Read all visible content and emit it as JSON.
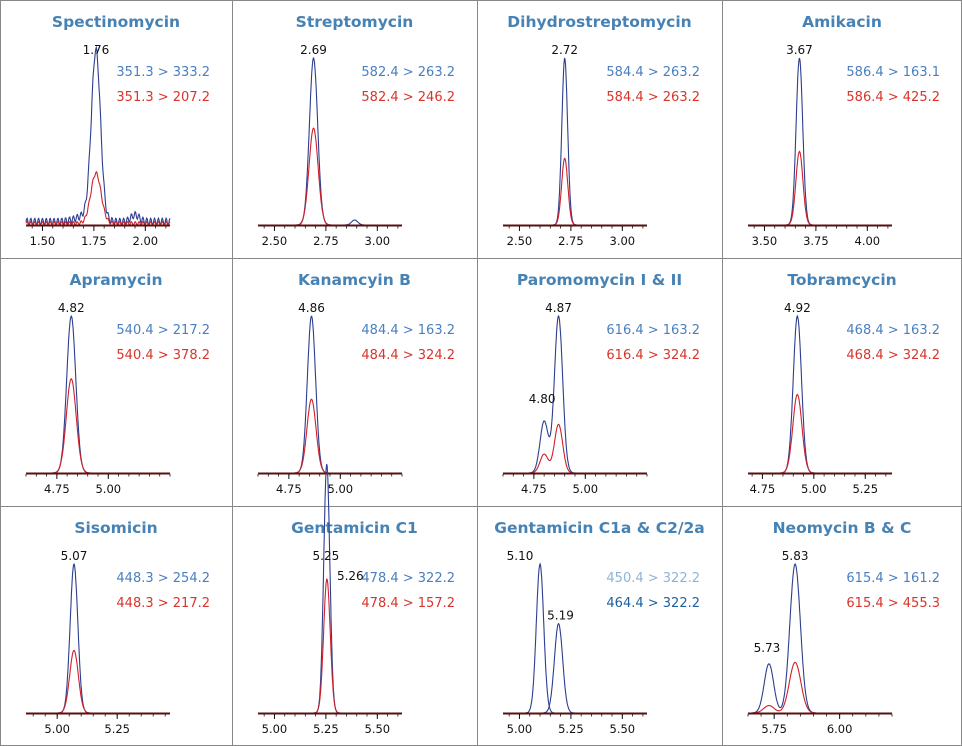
{
  "colors": {
    "title": "#4682b4",
    "blue_text": "#4a7fbf",
    "red_text": "#d9342b",
    "blue_trace": "#2c3e8f",
    "red_trace": "#d0202a",
    "light_blue_text": "#8fb3d9",
    "dark_blue_text": "#1f5f9e",
    "grid_border": "#888888"
  },
  "chart_data": [
    {
      "type": "line",
      "title": "Spectinomycin",
      "xlim": [
        1.42,
        2.12
      ],
      "xticks": [
        "1.50",
        "1.75",
        "2.00"
      ],
      "tick_values": [
        1.5,
        1.75,
        2.0
      ],
      "transitions": [
        {
          "text": "351.3 > 333.2",
          "color": "blue"
        },
        {
          "text": "351.3 > 207.2",
          "color": "red"
        }
      ],
      "series": [
        {
          "color": "blue",
          "baseline": 0.04,
          "peaks": [
            {
              "rt": 1.76,
              "height": 1.0,
              "width": 0.022,
              "label": "1.76"
            },
            {
              "rt": 1.72,
              "height": 0.04,
              "width": 0.05
            },
            {
              "rt": 1.95,
              "height": 0.04,
              "width": 0.02
            }
          ]
        },
        {
          "color": "red",
          "baseline": 0.02,
          "peaks": [
            {
              "rt": 1.76,
              "height": 0.3,
              "width": 0.025
            }
          ]
        }
      ]
    },
    {
      "type": "line",
      "title": "Streptomycin",
      "xlim": [
        2.42,
        3.12
      ],
      "xticks": [
        "2.50",
        "2.75",
        "3.00"
      ],
      "tick_values": [
        2.5,
        2.75,
        3.0
      ],
      "transitions": [
        {
          "text": "582.4 > 263.2",
          "color": "blue"
        },
        {
          "text": "582.4 > 246.2",
          "color": "red"
        }
      ],
      "series": [
        {
          "color": "blue",
          "baseline": 0.0,
          "peaks": [
            {
              "rt": 2.69,
              "height": 1.0,
              "width": 0.02,
              "label": "2.69"
            },
            {
              "rt": 2.89,
              "height": 0.03,
              "width": 0.015
            }
          ]
        },
        {
          "color": "red",
          "baseline": 0.0,
          "peaks": [
            {
              "rt": 2.69,
              "height": 0.58,
              "width": 0.022
            }
          ]
        }
      ]
    },
    {
      "type": "line",
      "title": "Dihydrostreptomycin",
      "xlim": [
        2.42,
        3.12
      ],
      "xticks": [
        "2.50",
        "2.75",
        "3.00"
      ],
      "tick_values": [
        2.5,
        2.75,
        3.0
      ],
      "transitions": [
        {
          "text": "584.4 > 263.2",
          "color": "blue"
        },
        {
          "text": "584.4 > 263.2",
          "color": "red"
        }
      ],
      "series": [
        {
          "color": "blue",
          "baseline": 0.0,
          "peaks": [
            {
              "rt": 2.72,
              "height": 1.0,
              "width": 0.014,
              "label": "2.72"
            }
          ]
        },
        {
          "color": "red",
          "baseline": 0.0,
          "peaks": [
            {
              "rt": 2.72,
              "height": 0.4,
              "width": 0.015
            }
          ]
        }
      ]
    },
    {
      "type": "line",
      "title": "Amikacin",
      "xlim": [
        3.42,
        4.12
      ],
      "xticks": [
        "3.50",
        "3.75",
        "4.00"
      ],
      "tick_values": [
        3.5,
        3.75,
        4.0
      ],
      "transitions": [
        {
          "text": "586.4 > 163.1",
          "color": "blue"
        },
        {
          "text": "586.4 > 425.2",
          "color": "red"
        }
      ],
      "series": [
        {
          "color": "blue",
          "baseline": 0.0,
          "peaks": [
            {
              "rt": 3.67,
              "height": 1.0,
              "width": 0.016,
              "label": "3.67"
            }
          ]
        },
        {
          "color": "red",
          "baseline": 0.0,
          "peaks": [
            {
              "rt": 3.67,
              "height": 0.44,
              "width": 0.017
            }
          ]
        }
      ]
    },
    {
      "type": "line",
      "title": "Apramycin",
      "xlim": [
        4.6,
        5.3
      ],
      "xticks": [
        "4.75",
        "5.00"
      ],
      "tick_values": [
        4.75,
        5.0
      ],
      "transitions": [
        {
          "text": "540.4 > 217.2",
          "color": "blue"
        },
        {
          "text": "540.4 > 378.2",
          "color": "red"
        }
      ],
      "series": [
        {
          "color": "blue",
          "baseline": 0.0,
          "peaks": [
            {
              "rt": 4.82,
              "height": 1.0,
              "width": 0.022,
              "label": "4.82"
            }
          ]
        },
        {
          "color": "red",
          "baseline": 0.0,
          "peaks": [
            {
              "rt": 4.82,
              "height": 0.6,
              "width": 0.024
            }
          ]
        }
      ]
    },
    {
      "type": "line",
      "title": "Kanamcyin B",
      "xlim": [
        4.6,
        5.3
      ],
      "xticks": [
        "4.75",
        "5.00"
      ],
      "tick_values": [
        4.75,
        5.0
      ],
      "transitions": [
        {
          "text": "484.4 > 163.2",
          "color": "blue"
        },
        {
          "text": "484.4 > 324.2",
          "color": "red"
        }
      ],
      "series": [
        {
          "color": "blue",
          "baseline": 0.0,
          "peaks": [
            {
              "rt": 4.86,
              "height": 1.0,
              "width": 0.02,
              "label": "4.86"
            }
          ]
        },
        {
          "color": "red",
          "baseline": 0.0,
          "peaks": [
            {
              "rt": 4.86,
              "height": 0.47,
              "width": 0.022
            }
          ]
        }
      ]
    },
    {
      "type": "line",
      "title": "Paromomycin I & II",
      "xlim": [
        4.6,
        5.3
      ],
      "xticks": [
        "4.75",
        "5.00"
      ],
      "tick_values": [
        4.75,
        5.0
      ],
      "transitions": [
        {
          "text": "616.4 > 163.2",
          "color": "blue"
        },
        {
          "text": "616.4 > 324.2",
          "color": "red"
        }
      ],
      "series": [
        {
          "color": "blue",
          "baseline": 0.0,
          "peaks": [
            {
              "rt": 4.8,
              "height": 0.33,
              "width": 0.02,
              "label": "4.80"
            },
            {
              "rt": 4.87,
              "height": 1.0,
              "width": 0.02,
              "label": "4.87"
            }
          ]
        },
        {
          "color": "red",
          "baseline": 0.0,
          "peaks": [
            {
              "rt": 4.8,
              "height": 0.12,
              "width": 0.02
            },
            {
              "rt": 4.87,
              "height": 0.31,
              "width": 0.02
            }
          ]
        }
      ]
    },
    {
      "type": "line",
      "title": "Tobramcycin",
      "xlim": [
        4.68,
        5.38
      ],
      "xticks": [
        "4.75",
        "5.00",
        "5.25"
      ],
      "tick_values": [
        4.75,
        5.0,
        5.25
      ],
      "transitions": [
        {
          "text": "468.4 > 163.2",
          "color": "blue"
        },
        {
          "text": "468.4 > 324.2",
          "color": "red"
        }
      ],
      "series": [
        {
          "color": "blue",
          "baseline": 0.0,
          "peaks": [
            {
              "rt": 4.92,
              "height": 1.0,
              "width": 0.02,
              "label": "4.92"
            }
          ]
        },
        {
          "color": "red",
          "baseline": 0.0,
          "peaks": [
            {
              "rt": 4.92,
              "height": 0.5,
              "width": 0.022
            }
          ]
        }
      ]
    },
    {
      "type": "line",
      "title": "Sisomicin",
      "xlim": [
        4.87,
        5.47
      ],
      "xticks": [
        "5.00",
        "5.25"
      ],
      "tick_values": [
        5.0,
        5.25
      ],
      "transitions": [
        {
          "text": "448.3 > 254.2",
          "color": "blue"
        },
        {
          "text": "448.3 > 217.2",
          "color": "red"
        }
      ],
      "series": [
        {
          "color": "blue",
          "baseline": 0.0,
          "peaks": [
            {
              "rt": 5.07,
              "height": 1.0,
              "width": 0.016,
              "label": "5.07"
            }
          ]
        },
        {
          "color": "red",
          "baseline": 0.0,
          "peaks": [
            {
              "rt": 5.07,
              "height": 0.42,
              "width": 0.018
            }
          ]
        }
      ]
    },
    {
      "type": "line",
      "title": "Gentamicin C1",
      "xlim": [
        4.92,
        5.62
      ],
      "xticks": [
        "5.00",
        "5.25",
        "5.50"
      ],
      "tick_values": [
        5.0,
        5.25,
        5.5
      ],
      "transitions": [
        {
          "text": "478.4 > 322.2",
          "color": "blue"
        },
        {
          "text": "478.4 > 157.2",
          "color": "red"
        }
      ],
      "series": [
        {
          "color": "blue",
          "baseline": 0.0,
          "peaks": [
            {
              "rt": 5.25,
              "height": 1.0,
              "width": 0.014,
              "label": "5.25"
            },
            {
              "rt": 5.26,
              "height": 0.78,
              "width": 0.014,
              "label": "5.26"
            }
          ]
        },
        {
          "color": "red",
          "baseline": 0.0,
          "peaks": [
            {
              "rt": 5.255,
              "height": 0.9,
              "width": 0.016
            }
          ]
        }
      ]
    },
    {
      "type": "line",
      "title": "Gentamicin C1a & C2/2a",
      "xlim": [
        4.92,
        5.62
      ],
      "xticks": [
        "5.00",
        "5.25",
        "5.50"
      ],
      "tick_values": [
        5.0,
        5.25,
        5.5
      ],
      "transitions": [
        {
          "text": "450.4 > 322.2",
          "color": "lightblue"
        },
        {
          "text": "464.4 > 322.2",
          "color": "darkblue"
        }
      ],
      "series": [
        {
          "color": "blue",
          "baseline": 0.0,
          "peaks": [
            {
              "rt": 5.1,
              "height": 1.0,
              "width": 0.018,
              "label": "5.10"
            }
          ]
        },
        {
          "color": "blue",
          "baseline": 0.0,
          "peaks": [
            {
              "rt": 5.19,
              "height": 0.6,
              "width": 0.02,
              "label": "5.19"
            }
          ]
        }
      ]
    },
    {
      "type": "line",
      "title": "Neomycin B & C",
      "xlim": [
        5.65,
        6.2
      ],
      "xticks": [
        "5.75",
        "6.00"
      ],
      "tick_values": [
        5.75,
        6.0
      ],
      "transitions": [
        {
          "text": "615.4 > 161.2",
          "color": "blue"
        },
        {
          "text": "615.4 > 455.3",
          "color": "red"
        }
      ],
      "series": [
        {
          "color": "blue",
          "baseline": 0.0,
          "peaks": [
            {
              "rt": 5.73,
              "height": 0.33,
              "width": 0.018,
              "label": "5.73"
            },
            {
              "rt": 5.83,
              "height": 1.0,
              "width": 0.02,
              "label": "5.83"
            }
          ]
        },
        {
          "color": "red",
          "baseline": 0.0,
          "peaks": [
            {
              "rt": 5.73,
              "height": 0.05,
              "width": 0.02
            },
            {
              "rt": 5.83,
              "height": 0.34,
              "width": 0.022
            }
          ]
        }
      ]
    }
  ]
}
